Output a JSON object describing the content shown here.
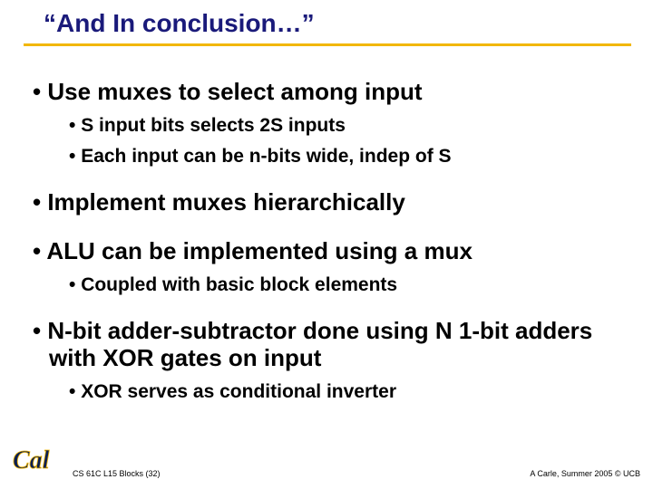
{
  "title": "“And In conclusion…”",
  "colors": {
    "title_color": "#1a1a7a",
    "underline_color": "#f2b705",
    "text_color": "#000000",
    "background": "#ffffff",
    "logo_blue": "#0a1e52",
    "logo_gold": "#f2b705"
  },
  "typography": {
    "title_fontsize": 28,
    "level1_fontsize": 26,
    "level2_fontsize": 21,
    "footer_fontsize": 9,
    "font_family": "Arial"
  },
  "bullets": [
    {
      "level": 1,
      "text": "Use muxes to select among input"
    },
    {
      "level": 2,
      "text": "S input bits selects 2S inputs"
    },
    {
      "level": 2,
      "text": "Each input can be n-bits wide, indep of S"
    },
    {
      "level": 1,
      "text": "Implement muxes hierarchically"
    },
    {
      "level": 1,
      "text": "ALU can be implemented using a mux"
    },
    {
      "level": 2,
      "text": "Coupled with basic block elements"
    },
    {
      "level": 1,
      "text": "N-bit adder-subtractor done using N 1-bit adders with XOR gates on input"
    },
    {
      "level": 2,
      "text": "XOR serves as conditional inverter"
    }
  ],
  "footer": {
    "left": "CS 61C L15 Blocks (32)",
    "right": "A Carle, Summer 2005 © UCB",
    "logo_text": "Cal"
  }
}
